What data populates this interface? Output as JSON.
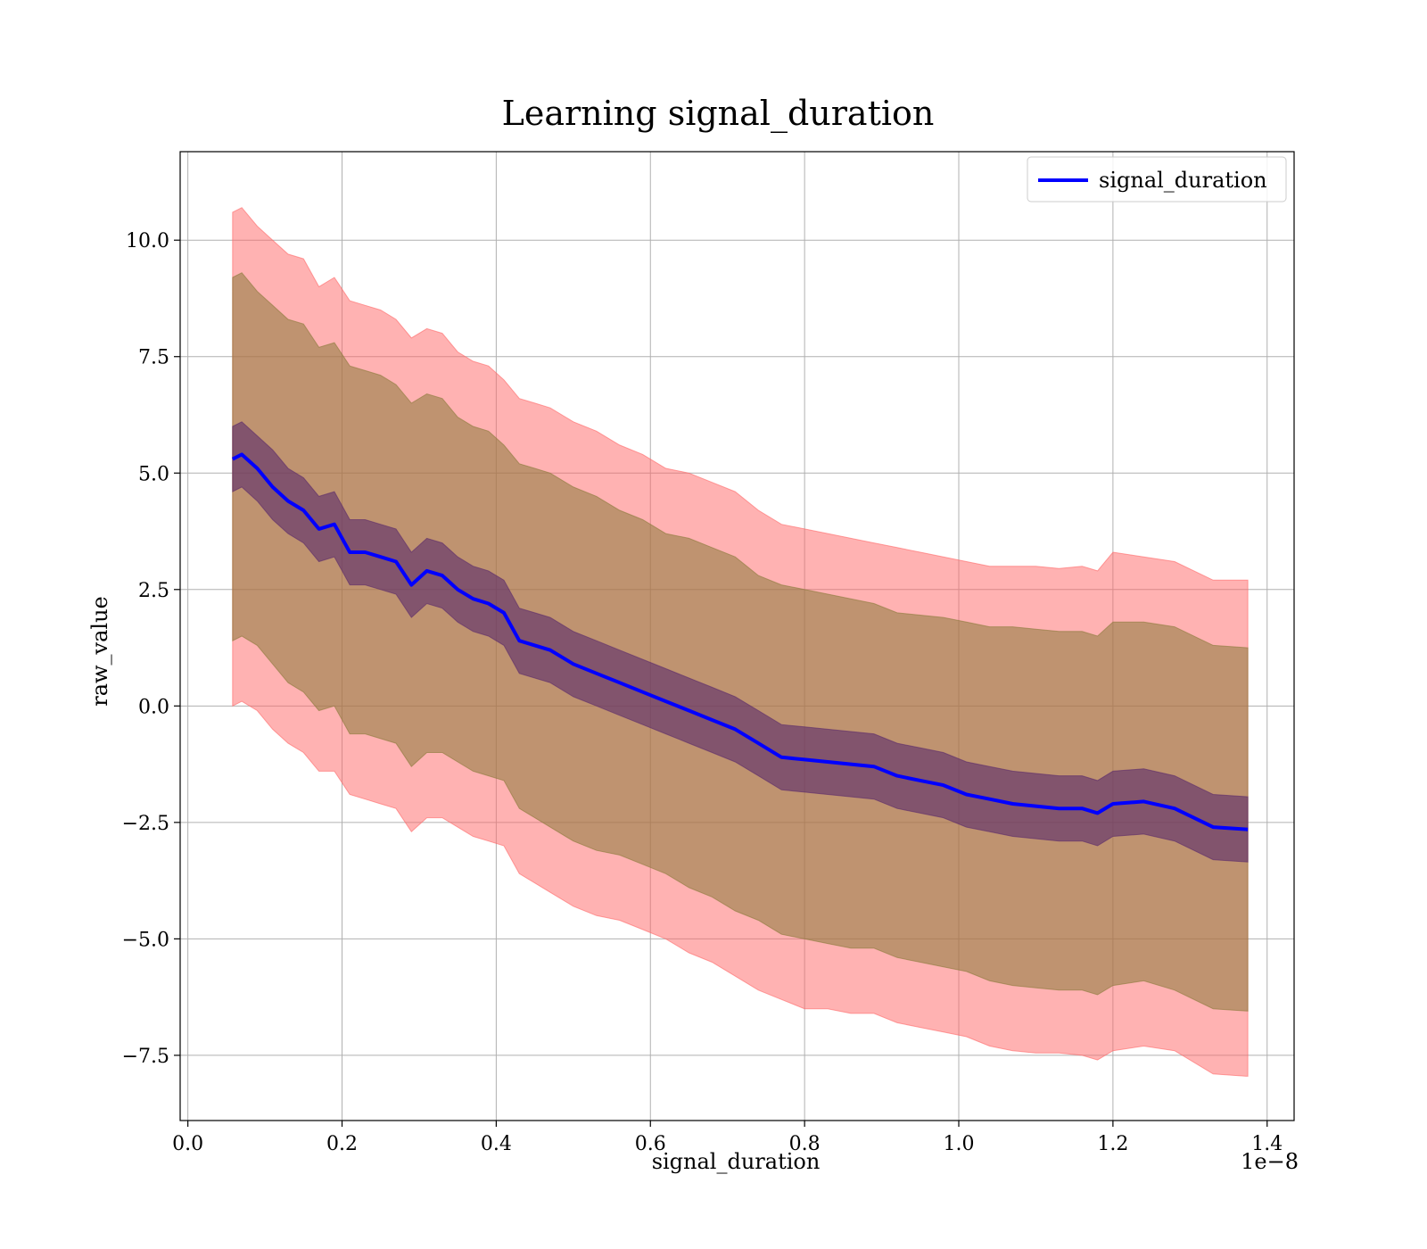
{
  "chart_data": {
    "type": "line",
    "title": "Learning signal_duration",
    "xlabel": "signal_duration",
    "ylabel": "raw_value",
    "x_offset_text": "1e−8",
    "xlim": [
      -0.01,
      1.435
    ],
    "ylim": [
      -8.9,
      11.9
    ],
    "x_ticks": [
      0.0,
      0.2,
      0.4,
      0.6,
      0.8,
      1.0,
      1.2,
      1.4
    ],
    "x_tick_labels": [
      "0.0",
      "0.2",
      "0.4",
      "0.6",
      "0.8",
      "1.0",
      "1.2",
      "1.4"
    ],
    "y_ticks": [
      10.0,
      7.5,
      5.0,
      2.5,
      0.0,
      -2.5,
      -5.0,
      -7.5
    ],
    "y_tick_labels": [
      "10.0",
      "7.5",
      "5.0",
      "2.5",
      "0.0",
      "−2.5",
      "−5.0",
      "−7.5"
    ],
    "grid": true,
    "legend_position": "top-right",
    "colors": {
      "mean_line": "#0000ff",
      "band_outer": "#ff6666",
      "band_middle": "#8b7a3a",
      "band_inner": "#5a2a6a"
    },
    "series": [
      {
        "name": "signal_duration",
        "x": [
          0.058,
          0.07,
          0.09,
          0.11,
          0.13,
          0.15,
          0.17,
          0.19,
          0.21,
          0.23,
          0.25,
          0.27,
          0.29,
          0.31,
          0.33,
          0.35,
          0.37,
          0.39,
          0.41,
          0.43,
          0.45,
          0.47,
          0.5,
          0.53,
          0.56,
          0.59,
          0.62,
          0.65,
          0.68,
          0.71,
          0.74,
          0.77,
          0.8,
          0.83,
          0.86,
          0.89,
          0.92,
          0.95,
          0.98,
          1.01,
          1.04,
          1.07,
          1.1,
          1.13,
          1.16,
          1.18,
          1.2,
          1.24,
          1.28,
          1.33,
          1.375
        ],
        "mean": [
          5.3,
          5.4,
          5.1,
          4.7,
          4.4,
          4.2,
          3.8,
          3.9,
          3.3,
          3.3,
          3.2,
          3.1,
          2.6,
          2.9,
          2.8,
          2.5,
          2.3,
          2.2,
          2.0,
          1.4,
          1.3,
          1.2,
          0.9,
          0.7,
          0.5,
          0.3,
          0.1,
          -0.1,
          -0.3,
          -0.5,
          -0.8,
          -1.1,
          -1.15,
          -1.2,
          -1.25,
          -1.3,
          -1.5,
          -1.6,
          -1.7,
          -1.9,
          -2.0,
          -2.1,
          -2.15,
          -2.2,
          -2.2,
          -2.3,
          -2.1,
          -2.05,
          -2.2,
          -2.6,
          -2.65
        ],
        "std": [
          0.8,
          0.78,
          0.76,
          0.74,
          0.72,
          0.71,
          0.7,
          0.69,
          0.69,
          0.68,
          0.68,
          0.68,
          0.68,
          0.68,
          0.68,
          0.68,
          0.69,
          0.69,
          0.69,
          0.69,
          0.69,
          0.69,
          0.69,
          0.69,
          0.69,
          0.69,
          0.69,
          0.69,
          0.69,
          0.69,
          0.69,
          0.69,
          0.69,
          0.69,
          0.69,
          0.69,
          0.69,
          0.69,
          0.69,
          0.69,
          0.69,
          0.69,
          0.69,
          0.69,
          0.69,
          0.69,
          0.69,
          0.69,
          0.69,
          0.69,
          0.69
        ]
      }
    ],
    "bands": [
      {
        "label": "outer",
        "x": [
          0.058,
          0.07,
          0.09,
          0.11,
          0.13,
          0.15,
          0.17,
          0.19,
          0.21,
          0.23,
          0.25,
          0.27,
          0.29,
          0.31,
          0.33,
          0.35,
          0.37,
          0.39,
          0.41,
          0.43,
          0.45,
          0.47,
          0.5,
          0.53,
          0.56,
          0.59,
          0.62,
          0.65,
          0.68,
          0.71,
          0.74,
          0.77,
          0.8,
          0.83,
          0.86,
          0.89,
          0.92,
          0.95,
          0.98,
          1.01,
          1.04,
          1.07,
          1.1,
          1.13,
          1.16,
          1.18,
          1.2,
          1.24,
          1.28,
          1.33,
          1.375
        ],
        "upper": [
          10.6,
          10.7,
          10.3,
          10.0,
          9.7,
          9.6,
          9.0,
          9.2,
          8.7,
          8.6,
          8.5,
          8.3,
          7.9,
          8.1,
          8.0,
          7.6,
          7.4,
          7.3,
          7.0,
          6.6,
          6.5,
          6.4,
          6.1,
          5.9,
          5.6,
          5.4,
          5.1,
          5.0,
          4.8,
          4.6,
          4.2,
          3.9,
          3.8,
          3.7,
          3.6,
          3.5,
          3.4,
          3.3,
          3.2,
          3.1,
          3.0,
          3.0,
          3.0,
          2.95,
          3.0,
          2.9,
          3.3,
          3.2,
          3.1,
          2.7,
          2.7
        ],
        "lower": [
          0.0,
          0.1,
          -0.1,
          -0.5,
          -0.8,
          -1.0,
          -1.4,
          -1.4,
          -1.9,
          -2.0,
          -2.1,
          -2.2,
          -2.7,
          -2.4,
          -2.4,
          -2.6,
          -2.8,
          -2.9,
          -3.0,
          -3.6,
          -3.8,
          -4.0,
          -4.3,
          -4.5,
          -4.6,
          -4.8,
          -5.0,
          -5.3,
          -5.5,
          -5.8,
          -6.1,
          -6.3,
          -6.5,
          -6.5,
          -6.6,
          -6.6,
          -6.8,
          -6.9,
          -7.0,
          -7.1,
          -7.3,
          -7.4,
          -7.45,
          -7.45,
          -7.5,
          -7.6,
          -7.4,
          -7.3,
          -7.4,
          -7.9,
          -7.95
        ]
      },
      {
        "label": "middle",
        "x": [
          0.058,
          0.07,
          0.09,
          0.11,
          0.13,
          0.15,
          0.17,
          0.19,
          0.21,
          0.23,
          0.25,
          0.27,
          0.29,
          0.31,
          0.33,
          0.35,
          0.37,
          0.39,
          0.41,
          0.43,
          0.45,
          0.47,
          0.5,
          0.53,
          0.56,
          0.59,
          0.62,
          0.65,
          0.68,
          0.71,
          0.74,
          0.77,
          0.8,
          0.83,
          0.86,
          0.89,
          0.92,
          0.95,
          0.98,
          1.01,
          1.04,
          1.07,
          1.1,
          1.13,
          1.16,
          1.18,
          1.2,
          1.24,
          1.28,
          1.33,
          1.375
        ],
        "upper": [
          9.2,
          9.3,
          8.9,
          8.6,
          8.3,
          8.2,
          7.7,
          7.8,
          7.3,
          7.2,
          7.1,
          6.9,
          6.5,
          6.7,
          6.6,
          6.2,
          6.0,
          5.9,
          5.6,
          5.2,
          5.1,
          5.0,
          4.7,
          4.5,
          4.2,
          4.0,
          3.7,
          3.6,
          3.4,
          3.2,
          2.8,
          2.6,
          2.5,
          2.4,
          2.3,
          2.2,
          2.0,
          1.95,
          1.9,
          1.8,
          1.7,
          1.7,
          1.65,
          1.6,
          1.6,
          1.5,
          1.8,
          1.8,
          1.7,
          1.3,
          1.25
        ],
        "lower": [
          1.4,
          1.5,
          1.3,
          0.9,
          0.5,
          0.3,
          -0.1,
          0.0,
          -0.6,
          -0.6,
          -0.7,
          -0.8,
          -1.3,
          -1.0,
          -1.0,
          -1.2,
          -1.4,
          -1.5,
          -1.6,
          -2.2,
          -2.4,
          -2.6,
          -2.9,
          -3.1,
          -3.2,
          -3.4,
          -3.6,
          -3.9,
          -4.1,
          -4.4,
          -4.6,
          -4.9,
          -5.0,
          -5.1,
          -5.2,
          -5.2,
          -5.4,
          -5.5,
          -5.6,
          -5.7,
          -5.9,
          -6.0,
          -6.05,
          -6.1,
          -6.1,
          -6.2,
          -6.0,
          -5.9,
          -6.1,
          -6.5,
          -6.55
        ]
      },
      {
        "label": "inner",
        "x": [
          0.058,
          0.07,
          0.09,
          0.11,
          0.13,
          0.15,
          0.17,
          0.19,
          0.21,
          0.23,
          0.25,
          0.27,
          0.29,
          0.31,
          0.33,
          0.35,
          0.37,
          0.39,
          0.41,
          0.43,
          0.45,
          0.47,
          0.5,
          0.53,
          0.56,
          0.59,
          0.62,
          0.65,
          0.68,
          0.71,
          0.74,
          0.77,
          0.8,
          0.83,
          0.86,
          0.89,
          0.92,
          0.95,
          0.98,
          1.01,
          1.04,
          1.07,
          1.1,
          1.13,
          1.16,
          1.18,
          1.2,
          1.24,
          1.28,
          1.33,
          1.375
        ],
        "upper": [
          6.0,
          6.1,
          5.8,
          5.5,
          5.1,
          4.9,
          4.5,
          4.6,
          4.0,
          4.0,
          3.9,
          3.8,
          3.3,
          3.6,
          3.5,
          3.2,
          3.0,
          2.9,
          2.7,
          2.1,
          2.0,
          1.9,
          1.6,
          1.4,
          1.2,
          1.0,
          0.8,
          0.6,
          0.4,
          0.2,
          -0.1,
          -0.4,
          -0.45,
          -0.5,
          -0.55,
          -0.6,
          -0.8,
          -0.9,
          -1.0,
          -1.2,
          -1.3,
          -1.4,
          -1.45,
          -1.5,
          -1.5,
          -1.6,
          -1.4,
          -1.35,
          -1.5,
          -1.9,
          -1.95
        ],
        "lower": [
          4.6,
          4.7,
          4.4,
          4.0,
          3.7,
          3.5,
          3.1,
          3.2,
          2.6,
          2.6,
          2.5,
          2.4,
          1.9,
          2.2,
          2.1,
          1.8,
          1.6,
          1.5,
          1.3,
          0.7,
          0.6,
          0.5,
          0.2,
          0.0,
          -0.2,
          -0.4,
          -0.6,
          -0.8,
          -1.0,
          -1.2,
          -1.5,
          -1.8,
          -1.85,
          -1.9,
          -1.95,
          -2.0,
          -2.2,
          -2.3,
          -2.4,
          -2.6,
          -2.7,
          -2.8,
          -2.85,
          -2.9,
          -2.9,
          -3.0,
          -2.8,
          -2.75,
          -2.9,
          -3.3,
          -3.35
        ]
      }
    ]
  }
}
